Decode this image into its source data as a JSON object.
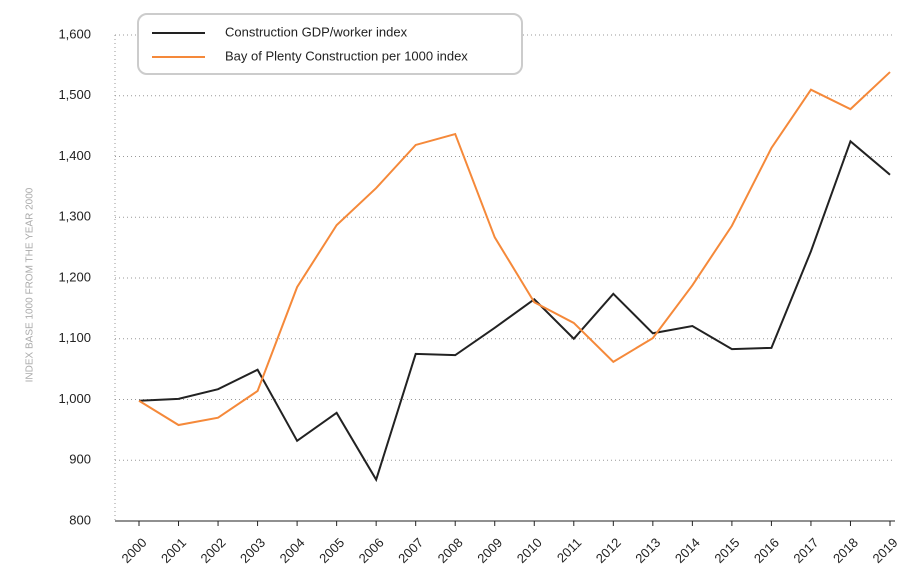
{
  "chart_data": {
    "type": "line",
    "y_label": "INDEX BASE 1000 FROM THE YEAR 2000",
    "categories": [
      "2000",
      "2001",
      "2002",
      "2003",
      "2004",
      "2005",
      "2006",
      "2007",
      "2008",
      "2009",
      "2010",
      "2011",
      "2012",
      "2013",
      "2014",
      "2015",
      "2016",
      "2017",
      "2018",
      "2019"
    ],
    "series": [
      {
        "name": "Construction GDP/worker index",
        "color": "#222222",
        "values": [
          998,
          1001,
          1017,
          1049,
          932,
          978,
          868,
          1075,
          1073,
          1118,
          1165,
          1100,
          1174,
          1109,
          1121,
          1083,
          1085,
          1244,
          1425,
          1370
        ]
      },
      {
        "name": "Bay of Plenty Construction per 1000 index",
        "color": "#f5893a",
        "values": [
          998,
          958,
          970,
          1014,
          1185,
          1287,
          1348,
          1419,
          1437,
          1267,
          1160,
          1126,
          1062,
          1101,
          1188,
          1286,
          1414,
          1510,
          1478,
          1539
        ]
      }
    ],
    "ylim": [
      800,
      1600
    ],
    "yticks": [
      800,
      900,
      {
        "value": 1000,
        "label": "1,000"
      },
      {
        "value": 1100,
        "label": "1,100"
      },
      {
        "value": 1200,
        "label": "1,200"
      },
      {
        "value": 1300,
        "label": "1,300"
      },
      {
        "value": 1400,
        "label": "1,400"
      },
      {
        "value": 1500,
        "label": "1,500"
      },
      {
        "value": 1600,
        "label": "1,600"
      }
    ],
    "grid": true,
    "legend": "top-left"
  }
}
